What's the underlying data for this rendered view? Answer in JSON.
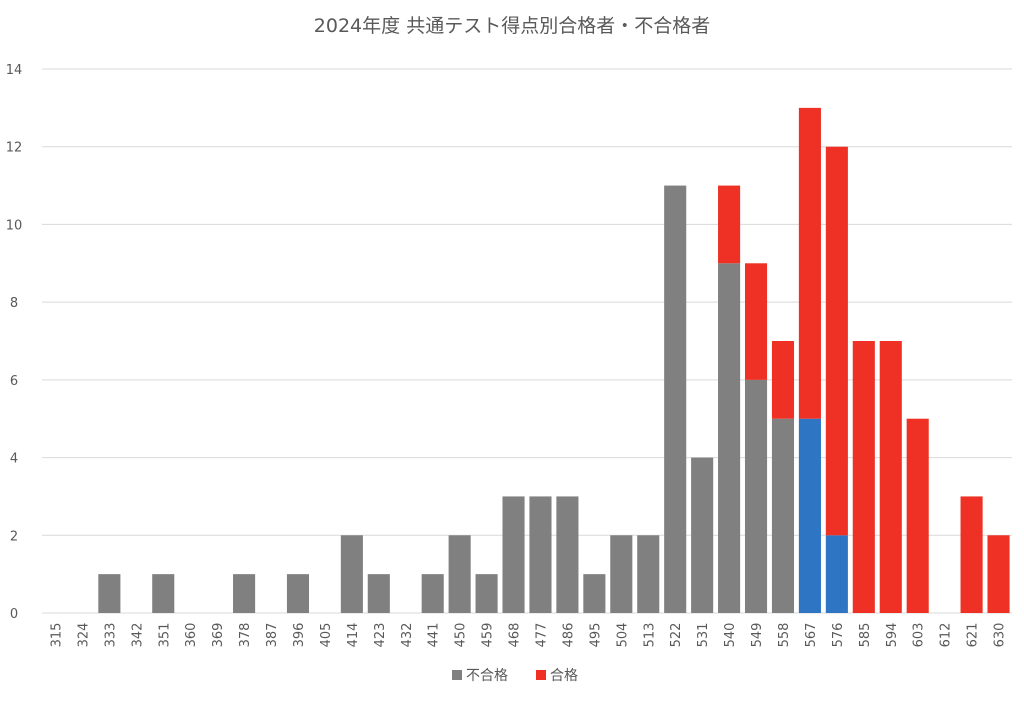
{
  "chart_data": {
    "type": "bar",
    "stacked": true,
    "title": "2024年度 共通テスト得点別合格者・不合格者",
    "xlabel": "",
    "ylabel": "",
    "categories": [
      "315",
      "324",
      "333",
      "342",
      "351",
      "360",
      "369",
      "378",
      "387",
      "396",
      "405",
      "414",
      "423",
      "432",
      "441",
      "450",
      "459",
      "468",
      "477",
      "486",
      "495",
      "504",
      "513",
      "522",
      "531",
      "540",
      "549",
      "558",
      "567",
      "576",
      "585",
      "594",
      "603",
      "612",
      "621",
      "630"
    ],
    "ylim": [
      0,
      14
    ],
    "yticks": [
      0,
      2,
      4,
      6,
      8,
      10,
      12,
      14
    ],
    "grid": true,
    "legend_position": "bottom",
    "series": [
      {
        "name": "不合格",
        "color": "#808080",
        "values": [
          0,
          0,
          1,
          0,
          1,
          0,
          0,
          1,
          0,
          1,
          0,
          2,
          1,
          0,
          1,
          2,
          1,
          3,
          3,
          3,
          1,
          2,
          2,
          11,
          4,
          9,
          6,
          5,
          5,
          2,
          0,
          0,
          0,
          0,
          0,
          0
        ]
      },
      {
        "name": "合格",
        "color": "#ee3124",
        "values": [
          0,
          0,
          0,
          0,
          0,
          0,
          0,
          0,
          0,
          0,
          0,
          0,
          0,
          0,
          0,
          0,
          0,
          0,
          0,
          0,
          0,
          0,
          0,
          0,
          0,
          2,
          3,
          2,
          8,
          10,
          7,
          7,
          5,
          0,
          3,
          2
        ]
      }
    ],
    "highlight": {
      "series": "不合格",
      "categories": [
        "567",
        "576"
      ],
      "color": "#2e75c3"
    }
  }
}
